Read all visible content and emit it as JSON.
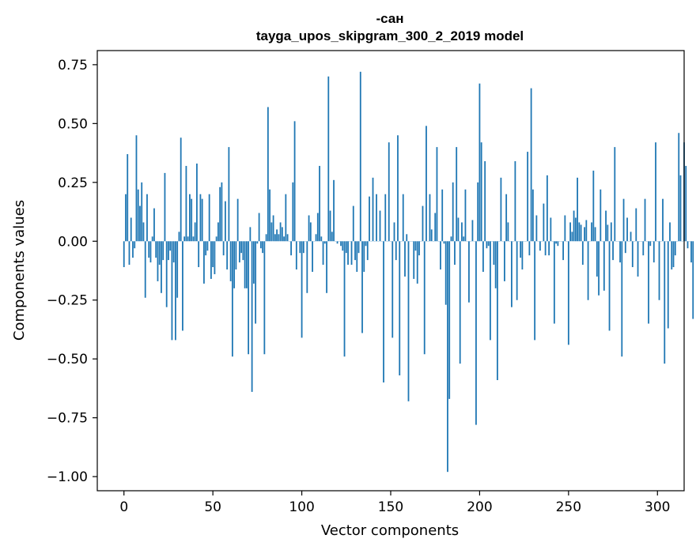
{
  "chart_data": {
    "type": "bar",
    "title_line1": "-сан",
    "title_line2": "tayga_upos_skipgram_300_2_2019 model",
    "xlabel": "Vector components",
    "ylabel": "Components values",
    "xlim": [
      -15,
      315
    ],
    "ylim": [
      -1.06,
      0.81
    ],
    "xticks": [
      0,
      50,
      100,
      150,
      200,
      250,
      300
    ],
    "xtick_labels": [
      "0",
      "50",
      "100",
      "150",
      "200",
      "250",
      "300"
    ],
    "yticks": [
      0.75,
      0.5,
      0.25,
      0.0,
      -0.25,
      -0.5,
      -0.75,
      -1.0
    ],
    "ytick_labels": [
      "0.75",
      "0.50",
      "0.25",
      "0.00",
      "−0.25",
      "−0.50",
      "−0.75",
      "−1.00"
    ],
    "bar_color": "#1f77b4",
    "values": [
      -0.11,
      0.2,
      0.37,
      -0.1,
      0.1,
      -0.07,
      -0.03,
      0.45,
      0.22,
      0.15,
      0.25,
      0.08,
      -0.24,
      0.2,
      -0.07,
      -0.09,
      0.02,
      0.14,
      -0.07,
      -0.17,
      -0.1,
      -0.22,
      -0.08,
      0.29,
      -0.28,
      -0.08,
      -0.04,
      -0.42,
      -0.09,
      -0.42,
      -0.24,
      0.04,
      0.44,
      -0.38,
      0.02,
      0.32,
      0.02,
      0.2,
      0.18,
      0.02,
      0.08,
      0.33,
      -0.11,
      0.2,
      0.18,
      -0.18,
      -0.06,
      -0.04,
      0.2,
      -0.16,
      -0.11,
      -0.14,
      0.02,
      0.08,
      0.23,
      0.25,
      -0.06,
      0.17,
      -0.12,
      0.4,
      -0.17,
      -0.49,
      -0.2,
      -0.12,
      0.18,
      -0.09,
      -0.05,
      -0.08,
      -0.2,
      -0.2,
      -0.48,
      0.06,
      -0.64,
      -0.18,
      -0.35,
      -0.01,
      0.12,
      -0.03,
      -0.05,
      -0.48,
      0.03,
      0.57,
      0.22,
      0.08,
      0.11,
      0.03,
      0.05,
      0.03,
      0.08,
      0.06,
      0.02,
      0.2,
      0.03,
      0.0,
      -0.06,
      0.25,
      0.51,
      -0.12,
      0.0,
      -0.05,
      -0.41,
      -0.05,
      0.0,
      -0.22,
      0.11,
      0.08,
      -0.13,
      0.0,
      0.03,
      0.12,
      0.32,
      0.02,
      -0.1,
      -0.01,
      -0.22,
      0.7,
      0.13,
      0.04,
      0.26,
      0.0,
      -0.01,
      0.0,
      -0.02,
      -0.04,
      -0.49,
      -0.05,
      -0.1,
      0.0,
      -0.1,
      0.15,
      -0.08,
      -0.13,
      -0.05,
      0.72,
      -0.39,
      -0.13,
      -0.02,
      -0.08,
      0.19,
      0.0,
      0.27,
      0.0,
      0.2,
      0.0,
      0.13,
      0.0,
      -0.6,
      0.2,
      0.0,
      0.42,
      0.0,
      -0.41,
      0.08,
      -0.08,
      0.45,
      -0.57,
      0.0,
      0.2,
      -0.15,
      0.03,
      -0.68,
      0.0,
      0.0,
      -0.16,
      -0.04,
      -0.18,
      -0.06,
      0.0,
      0.15,
      -0.48,
      0.49,
      0.0,
      0.2,
      0.05,
      0.0,
      0.12,
      0.4,
      0.0,
      -0.12,
      0.22,
      -0.01,
      -0.27,
      -0.98,
      -0.67,
      0.02,
      0.25,
      -0.1,
      0.4,
      0.1,
      -0.52,
      0.08,
      0.02,
      0.22,
      0.0,
      -0.26,
      0.0,
      0.09,
      0.0,
      -0.78,
      0.25,
      0.67,
      0.42,
      -0.13,
      0.34,
      -0.03,
      -0.02,
      -0.42,
      0.0,
      -0.1,
      -0.2,
      -0.59,
      0.0,
      0.27,
      0.0,
      -0.17,
      0.2,
      0.08,
      0.0,
      -0.28,
      0.0,
      0.34,
      -0.25,
      0.0,
      -0.07,
      -0.12,
      0.0,
      0.0,
      0.38,
      -0.06,
      0.65,
      0.22,
      -0.42,
      0.11,
      0.0,
      -0.04,
      0.0,
      0.16,
      -0.06,
      0.28,
      -0.06,
      0.1,
      0.0,
      -0.35,
      -0.01,
      -0.02,
      0.0,
      0.0,
      -0.08,
      0.11,
      0.0,
      -0.44,
      0.08,
      0.04,
      0.13,
      0.1,
      0.27,
      0.08,
      0.07,
      -0.1,
      0.06,
      0.09,
      -0.25,
      0.0,
      0.08,
      0.3,
      0.06,
      -0.15,
      -0.23,
      0.22,
      0.0,
      -0.21,
      0.13,
      0.07,
      -0.38,
      0.08,
      -0.08,
      0.4,
      0.0,
      0.0,
      -0.09,
      -0.49,
      0.18,
      -0.05,
      0.1,
      0.0,
      0.04,
      -0.11,
      0.0,
      0.14,
      -0.15,
      0.0,
      0.0,
      -0.06,
      0.18,
      0.0,
      -0.35,
      -0.02,
      0.0,
      -0.09,
      0.42,
      0.0,
      -0.25,
      0.0,
      0.18,
      -0.52,
      0.0,
      -0.37,
      0.08,
      -0.12,
      -0.11,
      -0.06,
      0.0,
      0.46,
      0.28,
      0.0,
      0.42,
      0.32,
      -0.03,
      0.0,
      -0.09,
      -0.33
    ]
  }
}
